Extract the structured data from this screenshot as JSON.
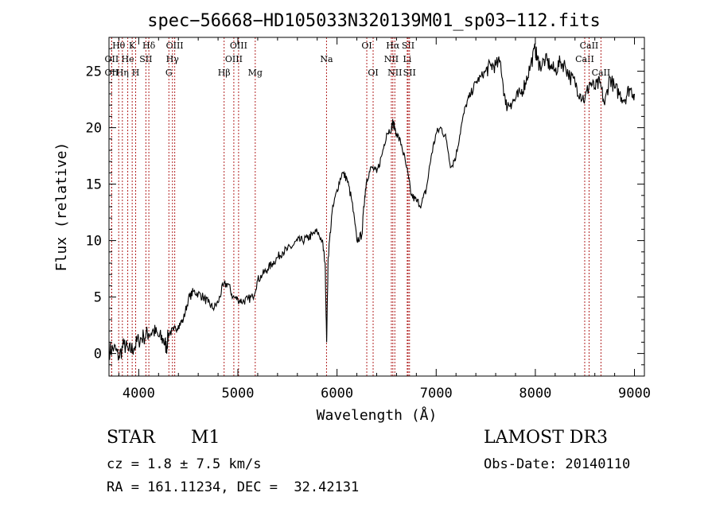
{
  "chart_data": {
    "type": "line",
    "title": "spec−56668−HD105033N320139M01_sp03−112.fits",
    "xlabel": "Wavelength (Å)",
    "ylabel": "Flux (relative)",
    "xlim": [
      3700,
      9100
    ],
    "ylim": [
      -2,
      28
    ],
    "xticks": [
      4000,
      5000,
      6000,
      7000,
      8000,
      9000
    ],
    "yticks": [
      0,
      5,
      10,
      15,
      20,
      25
    ],
    "series": [
      {
        "name": "spectrum",
        "x": [
          3700,
          3750,
          3800,
          3850,
          3900,
          3950,
          4000,
          4050,
          4100,
          4150,
          4200,
          4250,
          4280,
          4300,
          4350,
          4400,
          4450,
          4500,
          4550,
          4600,
          4650,
          4700,
          4750,
          4800,
          4850,
          4900,
          4950,
          5000,
          5050,
          5100,
          5150,
          5200,
          5250,
          5300,
          5350,
          5400,
          5450,
          5500,
          5550,
          5600,
          5650,
          5700,
          5750,
          5800,
          5850,
          5880,
          5895,
          5910,
          5950,
          6000,
          6050,
          6100,
          6150,
          6200,
          6250,
          6280,
          6300,
          6350,
          6400,
          6450,
          6500,
          6550,
          6563,
          6600,
          6650,
          6700,
          6750,
          6800,
          6850,
          6900,
          6950,
          7000,
          7050,
          7100,
          7150,
          7200,
          7250,
          7300,
          7350,
          7400,
          7450,
          7500,
          7550,
          7600,
          7650,
          7700,
          7750,
          7800,
          7850,
          7900,
          7950,
          8000,
          8020,
          8050,
          8100,
          8150,
          8200,
          8250,
          8300,
          8350,
          8400,
          8450,
          8500,
          8550,
          8600,
          8650,
          8700,
          8750,
          8800,
          8850,
          8900,
          8950,
          9000
        ],
        "y": [
          0.2,
          0.5,
          -0.3,
          0.8,
          0.2,
          0.5,
          1.2,
          1.5,
          1.8,
          2.0,
          1.5,
          1.2,
          0.5,
          1.8,
          2.0,
          2.5,
          3.0,
          4.8,
          5.5,
          5.3,
          5.0,
          4.5,
          4.0,
          4.5,
          6.0,
          6.2,
          5.0,
          4.8,
          4.6,
          4.8,
          5.0,
          6.5,
          7.0,
          7.5,
          8.0,
          8.5,
          9.0,
          9.2,
          9.5,
          10.0,
          10.0,
          10.2,
          10.5,
          10.8,
          10.0,
          8.0,
          1.0,
          8.5,
          12.5,
          14.5,
          16.0,
          15.5,
          13.5,
          10.0,
          10.5,
          14.0,
          15.5,
          16.5,
          16.0,
          17.5,
          19.5,
          20.0,
          20.5,
          19.5,
          18.5,
          16.5,
          14.0,
          13.5,
          13.2,
          14.5,
          17.5,
          19.5,
          20.0,
          19.0,
          16.5,
          17.5,
          20.0,
          22.0,
          23.0,
          24.0,
          24.5,
          25.0,
          25.5,
          25.5,
          25.8,
          22.0,
          22.2,
          22.5,
          23.0,
          24.0,
          25.5,
          27.0,
          26.0,
          25.5,
          26.0,
          25.5,
          25.0,
          25.8,
          25.5,
          24.5,
          24.0,
          23.0,
          22.5,
          24.0,
          23.5,
          24.0,
          22.0,
          24.5,
          23.5,
          23.0,
          22.5,
          23.5,
          23.0
        ]
      }
    ],
    "line_markers": [
      {
        "label": "Hθ",
        "x": 3798,
        "row": 1
      },
      {
        "label": "OII",
        "x": 3727,
        "row": 2
      },
      {
        "label": "OII",
        "x": 3727,
        "row": 3
      },
      {
        "label": "He",
        "x": 3889,
        "row": 2
      },
      {
        "label": "Hη",
        "x": 3835,
        "row": 3
      },
      {
        "label": "K",
        "x": 3934,
        "row": 1
      },
      {
        "label": "H",
        "x": 3969,
        "row": 3
      },
      {
        "label": "SII",
        "x": 4072,
        "row": 2
      },
      {
        "label": "Hδ",
        "x": 4102,
        "row": 1
      },
      {
        "label": "OIII",
        "x": 4363,
        "row": 1
      },
      {
        "label": "Hγ",
        "x": 4340,
        "row": 2
      },
      {
        "label": "G",
        "x": 4304,
        "row": 3
      },
      {
        "label": "Hβ",
        "x": 4861,
        "row": 3
      },
      {
        "label": "OIII",
        "x": 4959,
        "row": 2
      },
      {
        "label": "OIII",
        "x": 5007,
        "row": 1
      },
      {
        "label": "Mg",
        "x": 5175,
        "row": 3
      },
      {
        "label": "Na",
        "x": 5894,
        "row": 2
      },
      {
        "label": "OI",
        "x": 6300,
        "row": 1
      },
      {
        "label": "OI",
        "x": 6364,
        "row": 3
      },
      {
        "label": "NII",
        "x": 6548,
        "row": 2
      },
      {
        "label": "NII",
        "x": 6583,
        "row": 3
      },
      {
        "label": "Hα",
        "x": 6563,
        "row": 1
      },
      {
        "label": "SII",
        "x": 6717,
        "row": 1
      },
      {
        "label": "Li",
        "x": 6708,
        "row": 2
      },
      {
        "label": "SII",
        "x": 6731,
        "row": 3
      },
      {
        "label": "CaII",
        "x": 8498,
        "row": 2
      },
      {
        "label": "CaII",
        "x": 8542,
        "row": 1
      },
      {
        "label": "CaII",
        "x": 8662,
        "row": 3
      }
    ]
  },
  "info": {
    "class_label": "STAR",
    "subclass": "M1",
    "survey": "LAMOST DR3",
    "cz": "cz = 1.8 ± 7.5 km/s",
    "obs_date": "Obs-Date: 20140110",
    "coords": "RA = 161.11234, DEC =  32.42131"
  },
  "colors": {
    "line": "#000000",
    "marker": "#b22222"
  }
}
